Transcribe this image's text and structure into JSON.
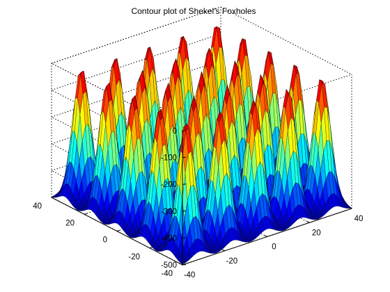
{
  "chart_data": {
    "type": "surface",
    "title": "Contour plot of Shekel's Foxholes",
    "xlabel": "",
    "ylabel": "",
    "zlabel": "",
    "x_range": [
      -40,
      40
    ],
    "y_range": [
      -40,
      40
    ],
    "z_range": [
      -500,
      0
    ],
    "x_ticks": [
      "-40",
      "-20",
      "0",
      "20",
      "40"
    ],
    "y_ticks": [
      "-40",
      "-20",
      "0",
      "20",
      "40"
    ],
    "z_ticks": [
      "-500",
      "-400",
      "-300",
      "-200",
      "-100",
      "0"
    ],
    "grid": true,
    "box": true,
    "colormap": [
      "#00008f",
      "#0000ff",
      "#0080ff",
      "#00ffff",
      "#80ff80",
      "#ffff00",
      "#ff8000",
      "#ff0000",
      "#800000"
    ],
    "peak_centers": [
      -32,
      -16,
      0,
      16,
      32
    ],
    "peak_value_approx": -10,
    "floor_value_approx": -500
  }
}
